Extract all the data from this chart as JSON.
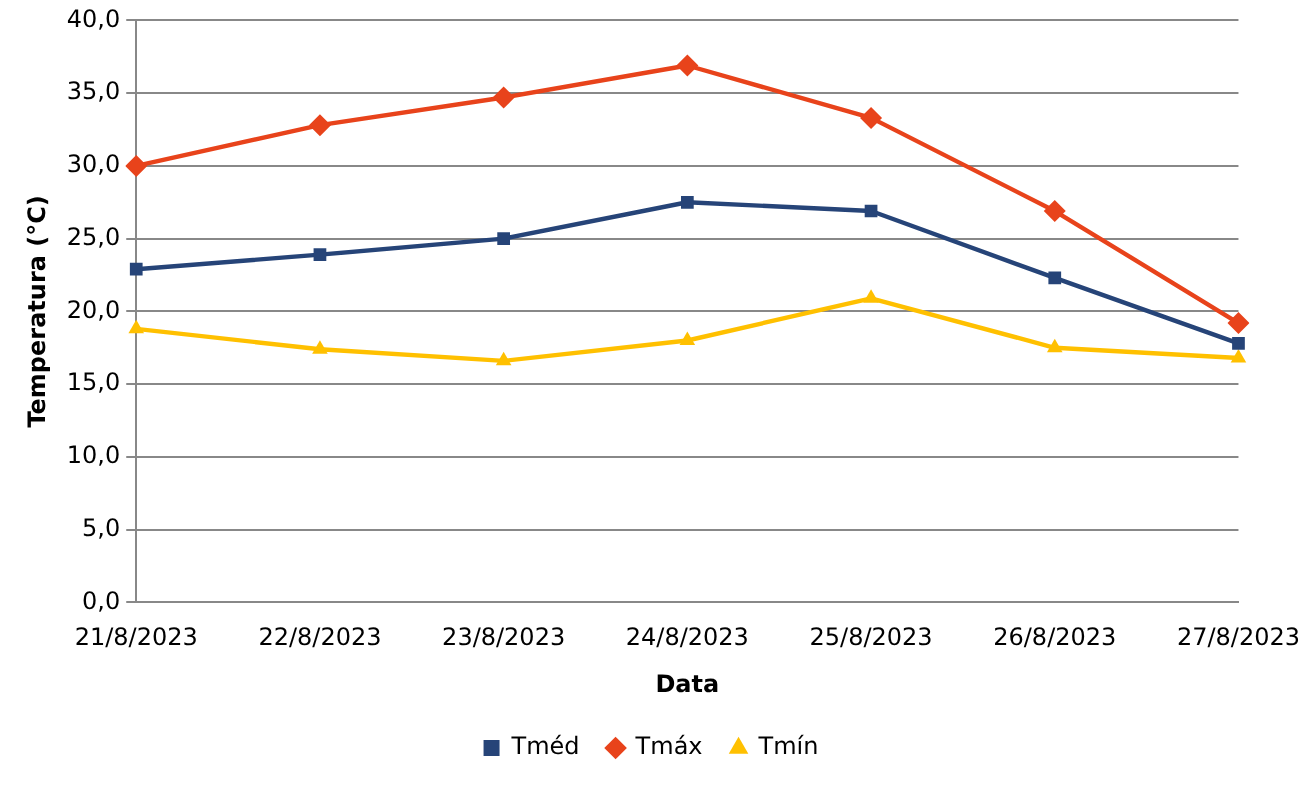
{
  "chart_data": {
    "type": "line",
    "xlabel": "Data",
    "ylabel": "Temperatura (°C)",
    "categories": [
      "21/8/2023",
      "22/8/2023",
      "23/8/2023",
      "24/8/2023",
      "25/8/2023",
      "26/8/2023",
      "27/8/2023"
    ],
    "series": [
      {
        "name": "Tméd",
        "color": "#264478",
        "marker": "square",
        "values": [
          22.9,
          23.9,
          25.0,
          27.5,
          26.9,
          22.3,
          17.8
        ]
      },
      {
        "name": "Tmáx",
        "color": "#e8431b",
        "marker": "diamond",
        "values": [
          30.0,
          32.8,
          34.7,
          36.9,
          33.3,
          26.9,
          19.2
        ]
      },
      {
        "name": "Tmín",
        "color": "#ffc000",
        "marker": "triangle",
        "values": [
          18.8,
          17.4,
          16.6,
          18.0,
          20.9,
          17.5,
          16.8
        ]
      }
    ],
    "ylim": [
      0,
      40
    ],
    "yticks": [
      {
        "value": 0,
        "label": "0,0"
      },
      {
        "value": 5,
        "label": "5,0"
      },
      {
        "value": 10,
        "label": "10,0"
      },
      {
        "value": 15,
        "label": "15,0"
      },
      {
        "value": 20,
        "label": "20,0"
      },
      {
        "value": 25,
        "label": "25,0"
      },
      {
        "value": 30,
        "label": "30,0"
      },
      {
        "value": 35,
        "label": "35,0"
      },
      {
        "value": 40,
        "label": "40,0"
      }
    ],
    "grid": "y",
    "legend": "bottom",
    "line_style": "solid"
  }
}
